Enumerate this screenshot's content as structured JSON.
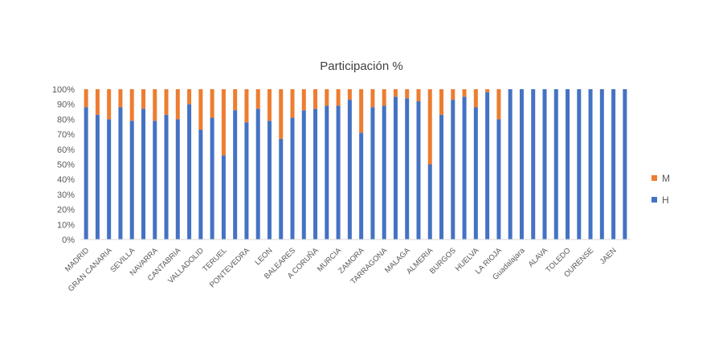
{
  "chart_data": {
    "type": "bar",
    "stacked": true,
    "percent": true,
    "title": "Participación %",
    "ylim": [
      0,
      100
    ],
    "yticks": [
      "0%",
      "10%",
      "20%",
      "30%",
      "40%",
      "50%",
      "60%",
      "70%",
      "80%",
      "90%",
      "100%"
    ],
    "grid": false,
    "legend_position": "right",
    "categories": [
      "MADRID",
      "",
      "GRAN CANARIA",
      "",
      "SEVILLA",
      "",
      "NAVARRA",
      "",
      "CANTABRIA",
      "",
      "VALLADOLID",
      "",
      "TERUEL",
      "",
      "PONTEVEDRA",
      "",
      "LEON",
      "",
      "BALEARES",
      "",
      "A CORUÑA",
      "",
      "MURCIA",
      "",
      "ZAMORA",
      "",
      "TARRAGONA",
      "",
      "MALAGA",
      "",
      "ALMERIA",
      "",
      "BURGOS",
      "",
      "HUELVA",
      "",
      "LA RIOJA",
      "",
      "Guadalajara",
      "",
      "ALAVA",
      "",
      "TOLEDO",
      "",
      "OURENSE",
      "",
      "JAEN",
      ""
    ],
    "series": [
      {
        "name": "H",
        "color": "#4472c4",
        "values": [
          88,
          83,
          80,
          88,
          79,
          87,
          79,
          83,
          80,
          90,
          73,
          81,
          56,
          86,
          78,
          87,
          79,
          67,
          81,
          86,
          87,
          89,
          89,
          93,
          71,
          88,
          89,
          95,
          94,
          92,
          50,
          83,
          93,
          95,
          88,
          98,
          80,
          100,
          100,
          100,
          100,
          100,
          100,
          100,
          100,
          100,
          100,
          100
        ]
      },
      {
        "name": "M",
        "color": "#ed7d31",
        "values": [
          12,
          17,
          20,
          12,
          21,
          13,
          21,
          17,
          20,
          10,
          27,
          19,
          44,
          14,
          22,
          13,
          21,
          33,
          19,
          14,
          13,
          11,
          11,
          7,
          29,
          12,
          11,
          5,
          6,
          8,
          50,
          17,
          7,
          5,
          12,
          2,
          20,
          0,
          0,
          0,
          0,
          0,
          0,
          0,
          0,
          0,
          0,
          0
        ]
      }
    ],
    "legend": [
      {
        "name": "M",
        "color": "#ed7d31"
      },
      {
        "name": "H",
        "color": "#4472c4"
      }
    ]
  }
}
